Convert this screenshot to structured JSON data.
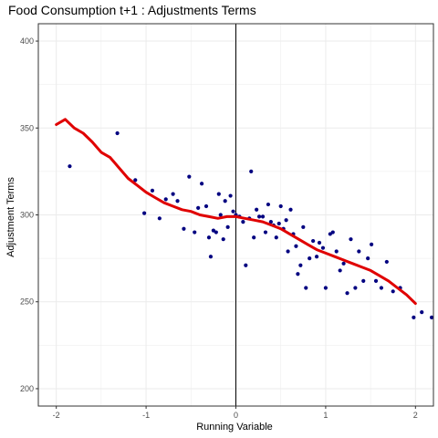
{
  "chart_data": {
    "type": "scatter",
    "title": "Food Consumption t+1 : Adjustments Terms",
    "xlabel": "Running Variable",
    "ylabel": "Adjustment Terms",
    "xlim": [
      -2.2,
      2.2
    ],
    "ylim": [
      190,
      410
    ],
    "x_ticks": [
      -2,
      -1,
      0,
      1,
      2
    ],
    "x_tick_labels": [
      "-2",
      "-1",
      "0",
      "1",
      "2"
    ],
    "y_ticks": [
      200,
      250,
      300,
      350,
      400
    ],
    "y_tick_labels": [
      "200",
      "250",
      "300",
      "350",
      "400"
    ],
    "grid": true,
    "cutoff_x": 0,
    "colors": {
      "points": "#000080",
      "fit_line": "#e00000",
      "cutoff_line": "#000000",
      "grid": "#ebebeb",
      "border": "#333333"
    },
    "points": [
      {
        "x": -1.85,
        "y": 328
      },
      {
        "x": -1.32,
        "y": 347
      },
      {
        "x": -1.12,
        "y": 320
      },
      {
        "x": -1.02,
        "y": 301
      },
      {
        "x": -0.93,
        "y": 314
      },
      {
        "x": -0.85,
        "y": 298
      },
      {
        "x": -0.78,
        "y": 309
      },
      {
        "x": -0.7,
        "y": 312
      },
      {
        "x": -0.65,
        "y": 308
      },
      {
        "x": -0.58,
        "y": 292
      },
      {
        "x": -0.52,
        "y": 322
      },
      {
        "x": -0.46,
        "y": 290
      },
      {
        "x": -0.42,
        "y": 304
      },
      {
        "x": -0.38,
        "y": 318
      },
      {
        "x": -0.33,
        "y": 305
      },
      {
        "x": -0.3,
        "y": 287
      },
      {
        "x": -0.28,
        "y": 276
      },
      {
        "x": -0.25,
        "y": 291
      },
      {
        "x": -0.22,
        "y": 290
      },
      {
        "x": -0.19,
        "y": 312
      },
      {
        "x": -0.17,
        "y": 300
      },
      {
        "x": -0.14,
        "y": 286
      },
      {
        "x": -0.12,
        "y": 308
      },
      {
        "x": -0.09,
        "y": 293
      },
      {
        "x": -0.06,
        "y": 311
      },
      {
        "x": -0.03,
        "y": 302
      },
      {
        "x": 0.0,
        "y": 300
      },
      {
        "x": 0.04,
        "y": 299
      },
      {
        "x": 0.08,
        "y": 296
      },
      {
        "x": 0.11,
        "y": 271
      },
      {
        "x": 0.15,
        "y": 298
      },
      {
        "x": 0.17,
        "y": 325
      },
      {
        "x": 0.2,
        "y": 287
      },
      {
        "x": 0.23,
        "y": 303
      },
      {
        "x": 0.26,
        "y": 299
      },
      {
        "x": 0.3,
        "y": 299
      },
      {
        "x": 0.33,
        "y": 290
      },
      {
        "x": 0.36,
        "y": 306
      },
      {
        "x": 0.39,
        "y": 296
      },
      {
        "x": 0.42,
        "y": 294
      },
      {
        "x": 0.45,
        "y": 287
      },
      {
        "x": 0.48,
        "y": 295
      },
      {
        "x": 0.5,
        "y": 305
      },
      {
        "x": 0.53,
        "y": 292
      },
      {
        "x": 0.56,
        "y": 297
      },
      {
        "x": 0.58,
        "y": 279
      },
      {
        "x": 0.61,
        "y": 303
      },
      {
        "x": 0.64,
        "y": 289
      },
      {
        "x": 0.67,
        "y": 282
      },
      {
        "x": 0.69,
        "y": 266
      },
      {
        "x": 0.72,
        "y": 271
      },
      {
        "x": 0.75,
        "y": 293
      },
      {
        "x": 0.78,
        "y": 258
      },
      {
        "x": 0.82,
        "y": 275
      },
      {
        "x": 0.86,
        "y": 285
      },
      {
        "x": 0.9,
        "y": 276
      },
      {
        "x": 0.93,
        "y": 284
      },
      {
        "x": 0.97,
        "y": 281
      },
      {
        "x": 1.0,
        "y": 258
      },
      {
        "x": 1.05,
        "y": 289
      },
      {
        "x": 1.08,
        "y": 290
      },
      {
        "x": 1.12,
        "y": 279
      },
      {
        "x": 1.16,
        "y": 268
      },
      {
        "x": 1.2,
        "y": 272
      },
      {
        "x": 1.24,
        "y": 255
      },
      {
        "x": 1.28,
        "y": 286
      },
      {
        "x": 1.33,
        "y": 258
      },
      {
        "x": 1.37,
        "y": 279
      },
      {
        "x": 1.42,
        "y": 262
      },
      {
        "x": 1.47,
        "y": 275
      },
      {
        "x": 1.51,
        "y": 283
      },
      {
        "x": 1.56,
        "y": 262
      },
      {
        "x": 1.62,
        "y": 258
      },
      {
        "x": 1.68,
        "y": 273
      },
      {
        "x": 1.75,
        "y": 256
      },
      {
        "x": 1.83,
        "y": 258
      },
      {
        "x": 1.98,
        "y": 241
      },
      {
        "x": 2.07,
        "y": 244
      },
      {
        "x": 2.18,
        "y": 241
      }
    ],
    "fit_line": [
      {
        "x": -2.0,
        "y": 352
      },
      {
        "x": -1.9,
        "y": 355
      },
      {
        "x": -1.8,
        "y": 350
      },
      {
        "x": -1.7,
        "y": 347
      },
      {
        "x": -1.6,
        "y": 342
      },
      {
        "x": -1.5,
        "y": 336
      },
      {
        "x": -1.4,
        "y": 333
      },
      {
        "x": -1.3,
        "y": 327
      },
      {
        "x": -1.2,
        "y": 321
      },
      {
        "x": -1.1,
        "y": 317
      },
      {
        "x": -1.0,
        "y": 313
      },
      {
        "x": -0.9,
        "y": 310
      },
      {
        "x": -0.8,
        "y": 307
      },
      {
        "x": -0.7,
        "y": 305
      },
      {
        "x": -0.6,
        "y": 303
      },
      {
        "x": -0.5,
        "y": 302
      },
      {
        "x": -0.4,
        "y": 300
      },
      {
        "x": -0.3,
        "y": 299
      },
      {
        "x": -0.2,
        "y": 298
      },
      {
        "x": -0.1,
        "y": 299
      },
      {
        "x": 0.0,
        "y": 299
      },
      {
        "x": 0.1,
        "y": 298
      },
      {
        "x": 0.2,
        "y": 297
      },
      {
        "x": 0.3,
        "y": 296
      },
      {
        "x": 0.4,
        "y": 294
      },
      {
        "x": 0.5,
        "y": 292
      },
      {
        "x": 0.6,
        "y": 289
      },
      {
        "x": 0.7,
        "y": 286
      },
      {
        "x": 0.8,
        "y": 283
      },
      {
        "x": 0.9,
        "y": 280
      },
      {
        "x": 1.0,
        "y": 278
      },
      {
        "x": 1.1,
        "y": 276
      },
      {
        "x": 1.2,
        "y": 274
      },
      {
        "x": 1.3,
        "y": 272
      },
      {
        "x": 1.4,
        "y": 270
      },
      {
        "x": 1.5,
        "y": 268
      },
      {
        "x": 1.6,
        "y": 265
      },
      {
        "x": 1.7,
        "y": 262
      },
      {
        "x": 1.8,
        "y": 258
      },
      {
        "x": 1.9,
        "y": 254
      },
      {
        "x": 2.0,
        "y": 249
      }
    ]
  }
}
